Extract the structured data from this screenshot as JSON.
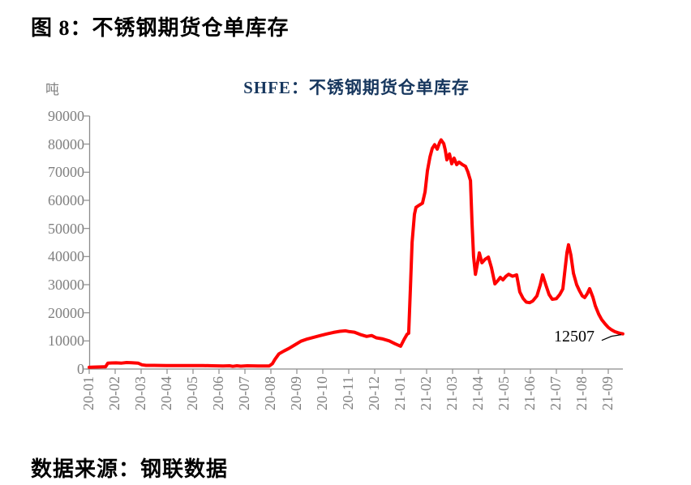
{
  "page": {
    "figure_title": "图 8：不锈钢期货仓单库存",
    "source_note": "数据来源：钢联数据"
  },
  "chart": {
    "title": "SHFE：不锈钢期货仓单库存",
    "unit_label": "吨",
    "annotation": {
      "label": "12507",
      "value": 12507
    },
    "colors": {
      "series": "#FF0000",
      "title_text": "#17375E",
      "axis": "#8C8C8C",
      "tick_text": "#7F7F7F",
      "annotation_text": "#000000"
    }
  },
  "chart_data": {
    "type": "line",
    "title": "SHFE：不锈钢期货仓单库存",
    "xlabel": "",
    "ylabel": "吨",
    "ylim": [
      0,
      90000
    ],
    "y_ticks": [
      0,
      10000,
      20000,
      30000,
      40000,
      50000,
      60000,
      70000,
      80000,
      90000
    ],
    "x_ticks": [
      "20-01",
      "20-02",
      "20-03",
      "20-04",
      "20-05",
      "20-06",
      "20-07",
      "20-08",
      "20-09",
      "20-10",
      "20-11",
      "20-12",
      "21-01",
      "21-02",
      "21-03",
      "21-04",
      "21-05",
      "21-06",
      "21-07",
      "21-08",
      "21-09"
    ],
    "x_unit": "months since 20-01",
    "x_range": [
      0,
      20.56
    ],
    "grid": false,
    "legend_position": "none",
    "last_point_label": "12507",
    "series": [
      {
        "name": "SHFE：不锈钢期货仓单库存",
        "color": "#FF0000",
        "points": [
          [
            0,
            600
          ],
          [
            0.19,
            700
          ],
          [
            0.44,
            750
          ],
          [
            0.63,
            800
          ],
          [
            0.72,
            2100
          ],
          [
            0.88,
            2150
          ],
          [
            1.03,
            2200
          ],
          [
            1.25,
            2100
          ],
          [
            1.44,
            2300
          ],
          [
            1.63,
            2250
          ],
          [
            1.88,
            2100
          ],
          [
            2.03,
            1500
          ],
          [
            2.19,
            1300
          ],
          [
            2.5,
            1300
          ],
          [
            2.97,
            1250
          ],
          [
            3.44,
            1250
          ],
          [
            3.91,
            1200
          ],
          [
            4.38,
            1250
          ],
          [
            4.75,
            1150
          ],
          [
            5.16,
            1100
          ],
          [
            5.41,
            1150
          ],
          [
            5.53,
            950
          ],
          [
            5.69,
            1150
          ],
          [
            5.84,
            1000
          ],
          [
            6.09,
            1150
          ],
          [
            6.5,
            1100
          ],
          [
            6.94,
            1100
          ],
          [
            7.06,
            1900
          ],
          [
            7.16,
            3500
          ],
          [
            7.31,
            5400
          ],
          [
            7.5,
            6400
          ],
          [
            7.69,
            7300
          ],
          [
            7.91,
            8500
          ],
          [
            8.16,
            9900
          ],
          [
            8.41,
            10700
          ],
          [
            8.66,
            11300
          ],
          [
            8.91,
            11900
          ],
          [
            9.16,
            12500
          ],
          [
            9.41,
            13000
          ],
          [
            9.66,
            13400
          ],
          [
            9.88,
            13600
          ],
          [
            10.03,
            13300
          ],
          [
            10.22,
            13100
          ],
          [
            10.44,
            12300
          ],
          [
            10.69,
            11600
          ],
          [
            10.88,
            11900
          ],
          [
            11.06,
            11100
          ],
          [
            11.31,
            10700
          ],
          [
            11.56,
            10000
          ],
          [
            11.78,
            9000
          ],
          [
            12.0,
            8100
          ],
          [
            12.13,
            10500
          ],
          [
            12.25,
            12400
          ],
          [
            12.31,
            12700
          ],
          [
            12.38,
            30000
          ],
          [
            12.44,
            45000
          ],
          [
            12.53,
            55000
          ],
          [
            12.59,
            57500
          ],
          [
            12.72,
            58300
          ],
          [
            12.84,
            59000
          ],
          [
            12.94,
            63000
          ],
          [
            13.03,
            70500
          ],
          [
            13.13,
            75500
          ],
          [
            13.22,
            78500
          ],
          [
            13.31,
            79800
          ],
          [
            13.41,
            78200
          ],
          [
            13.5,
            80500
          ],
          [
            13.56,
            81500
          ],
          [
            13.66,
            80200
          ],
          [
            13.72,
            77900
          ],
          [
            13.78,
            74400
          ],
          [
            13.88,
            76500
          ],
          [
            13.97,
            73000
          ],
          [
            14.06,
            75000
          ],
          [
            14.16,
            72700
          ],
          [
            14.25,
            73600
          ],
          [
            14.38,
            72700
          ],
          [
            14.5,
            72100
          ],
          [
            14.59,
            70100
          ],
          [
            14.69,
            67000
          ],
          [
            14.75,
            52000
          ],
          [
            14.81,
            40000
          ],
          [
            14.88,
            33700
          ],
          [
            14.97,
            38000
          ],
          [
            15.03,
            41300
          ],
          [
            15.13,
            37800
          ],
          [
            15.25,
            39000
          ],
          [
            15.38,
            39800
          ],
          [
            15.5,
            36000
          ],
          [
            15.63,
            30300
          ],
          [
            15.75,
            31500
          ],
          [
            15.84,
            32600
          ],
          [
            15.94,
            31700
          ],
          [
            16.06,
            33000
          ],
          [
            16.16,
            33700
          ],
          [
            16.31,
            33000
          ],
          [
            16.47,
            33500
          ],
          [
            16.59,
            27400
          ],
          [
            16.72,
            25100
          ],
          [
            16.84,
            23800
          ],
          [
            16.97,
            23600
          ],
          [
            17.09,
            24200
          ],
          [
            17.25,
            26000
          ],
          [
            17.38,
            30000
          ],
          [
            17.47,
            33500
          ],
          [
            17.59,
            30000
          ],
          [
            17.72,
            26500
          ],
          [
            17.84,
            24800
          ],
          [
            18.0,
            25000
          ],
          [
            18.13,
            26500
          ],
          [
            18.25,
            28500
          ],
          [
            18.34,
            36000
          ],
          [
            18.41,
            41500
          ],
          [
            18.47,
            44200
          ],
          [
            18.56,
            40500
          ],
          [
            18.66,
            34000
          ],
          [
            18.78,
            30000
          ],
          [
            18.88,
            28000
          ],
          [
            19.0,
            26000
          ],
          [
            19.09,
            25400
          ],
          [
            19.19,
            26800
          ],
          [
            19.28,
            28600
          ],
          [
            19.41,
            25500
          ],
          [
            19.5,
            22500
          ],
          [
            19.63,
            19500
          ],
          [
            19.75,
            17500
          ],
          [
            19.88,
            16000
          ],
          [
            20.0,
            14800
          ],
          [
            20.13,
            13900
          ],
          [
            20.25,
            13300
          ],
          [
            20.38,
            12900
          ],
          [
            20.47,
            12650
          ],
          [
            20.56,
            12507
          ]
        ]
      }
    ]
  }
}
